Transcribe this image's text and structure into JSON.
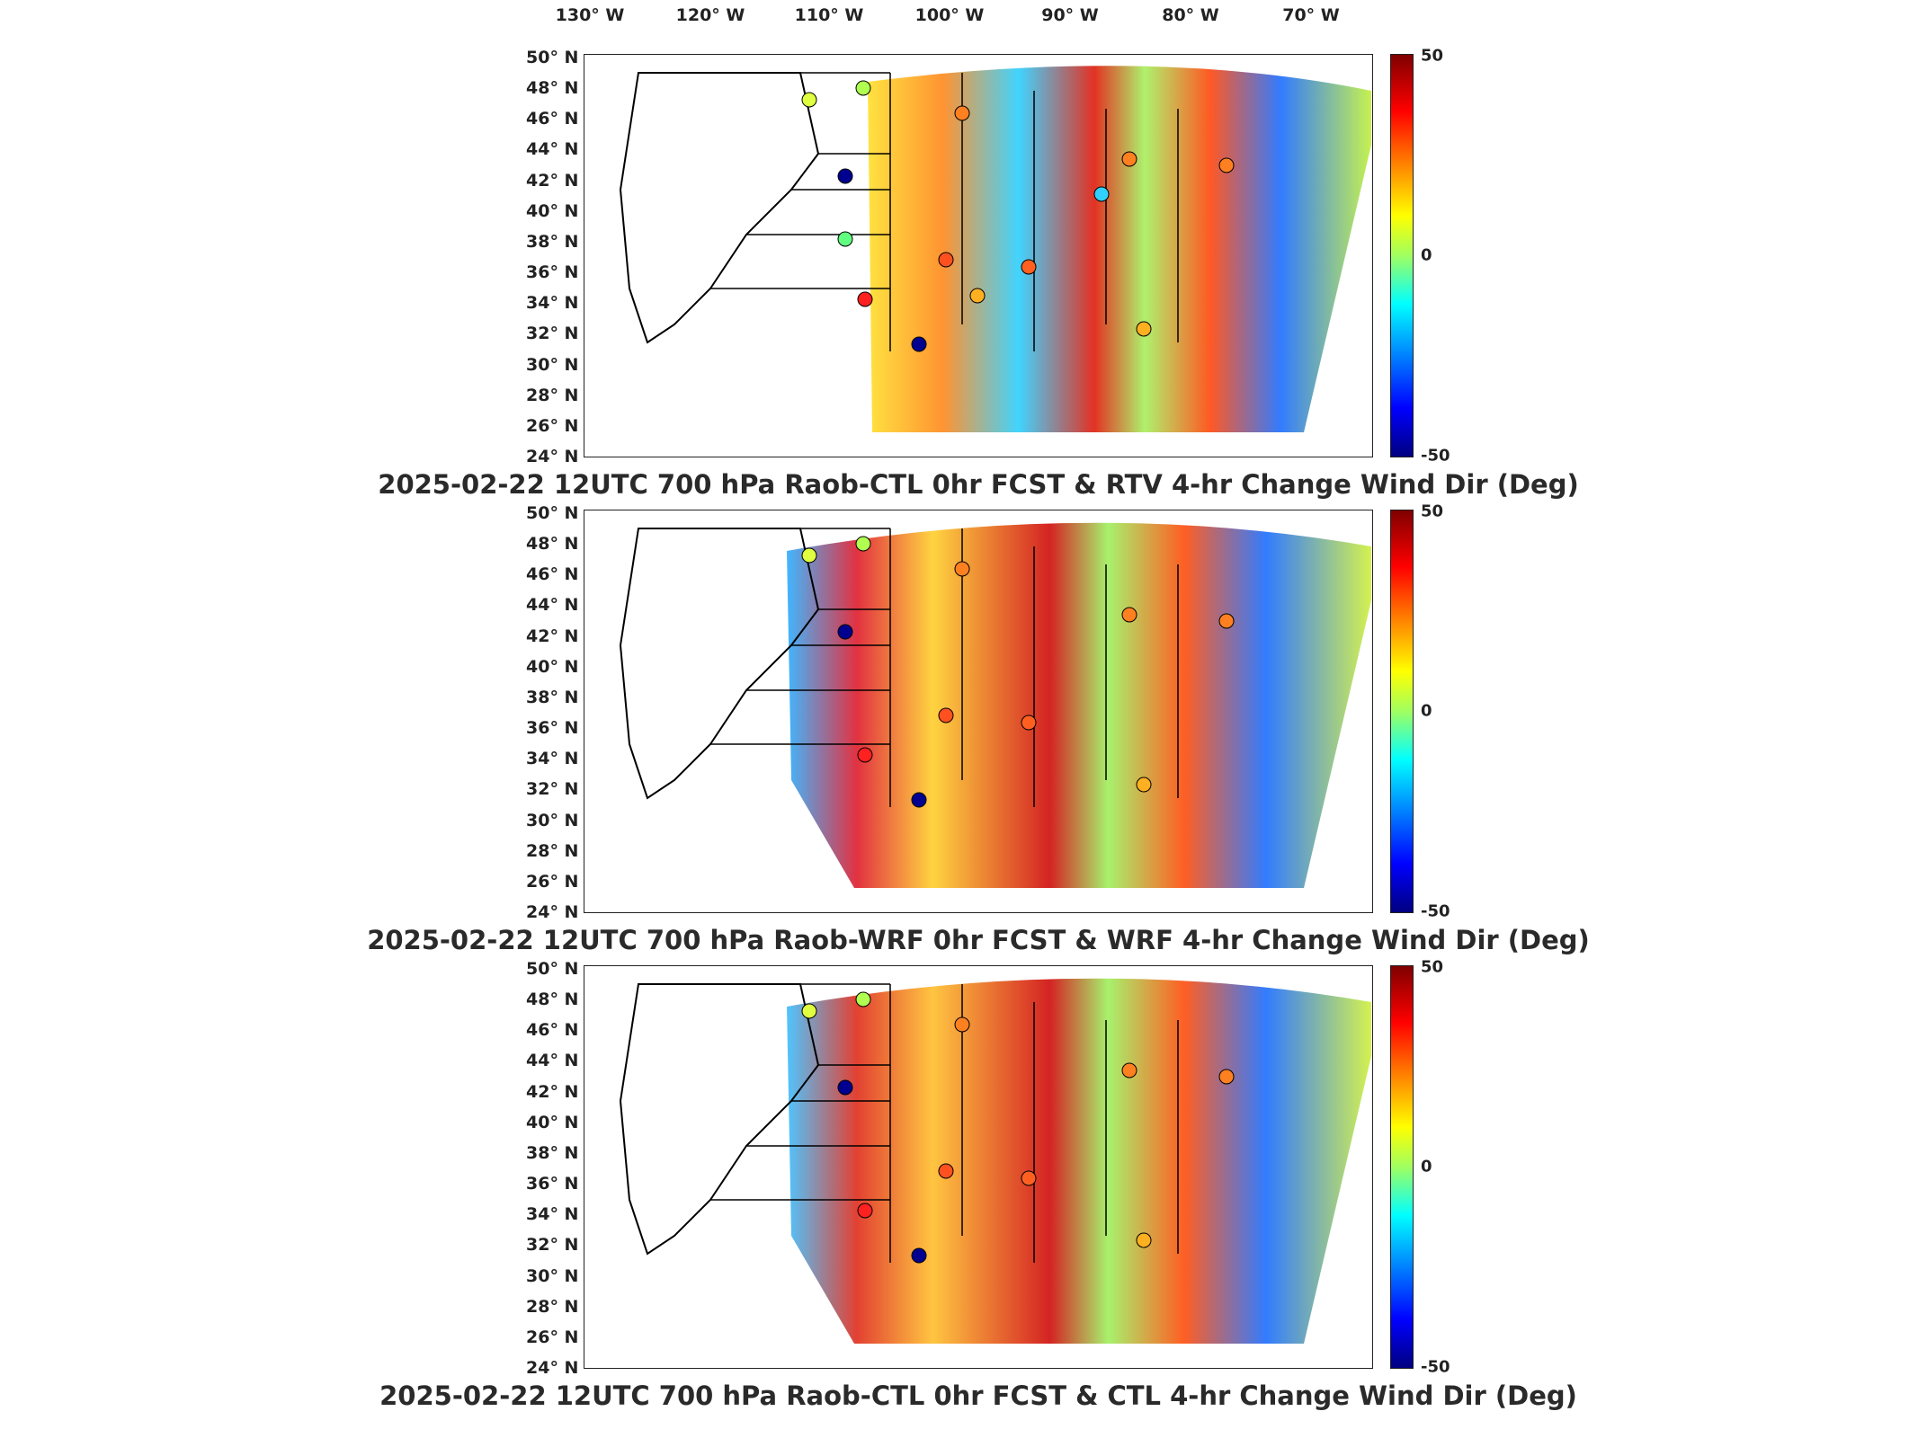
{
  "longitude_labels": [
    "130° W",
    "120° W",
    "110° W",
    "100° W",
    "90° W",
    "80° W",
    "70° W"
  ],
  "latitude_labels": [
    "50° N",
    "48° N",
    "46° N",
    "44° N",
    "42° N",
    "40° N",
    "38° N",
    "36° N",
    "34° N",
    "32° N",
    "30° N",
    "28° N",
    "26° N",
    "24° N"
  ],
  "colorbar": {
    "max": "50",
    "mid": "0",
    "min": "-50"
  },
  "colors": {
    "dark_red": "#800000",
    "red": "#ff0000",
    "orange": "#ff8000",
    "yellow": "#ffff00",
    "green": "#a0ff60",
    "cyan": "#00ffff",
    "blue": "#0080ff",
    "dark_blue": "#000080"
  },
  "panels": [
    {
      "title": "2025-02-22 12UTC 700 hPa Raob-CTL 0hr FCST & RTV 4-hr Change Wind Dir (Deg)"
    },
    {
      "title": "2025-02-22 12UTC 700 hPa Raob-WRF 0hr FCST & WRF 4-hr Change Wind Dir (Deg)"
    },
    {
      "title": "2025-02-22 12UTC 700 hPa Raob-CTL 0hr FCST & CTL 4-hr Change Wind Dir (Deg)"
    }
  ]
}
